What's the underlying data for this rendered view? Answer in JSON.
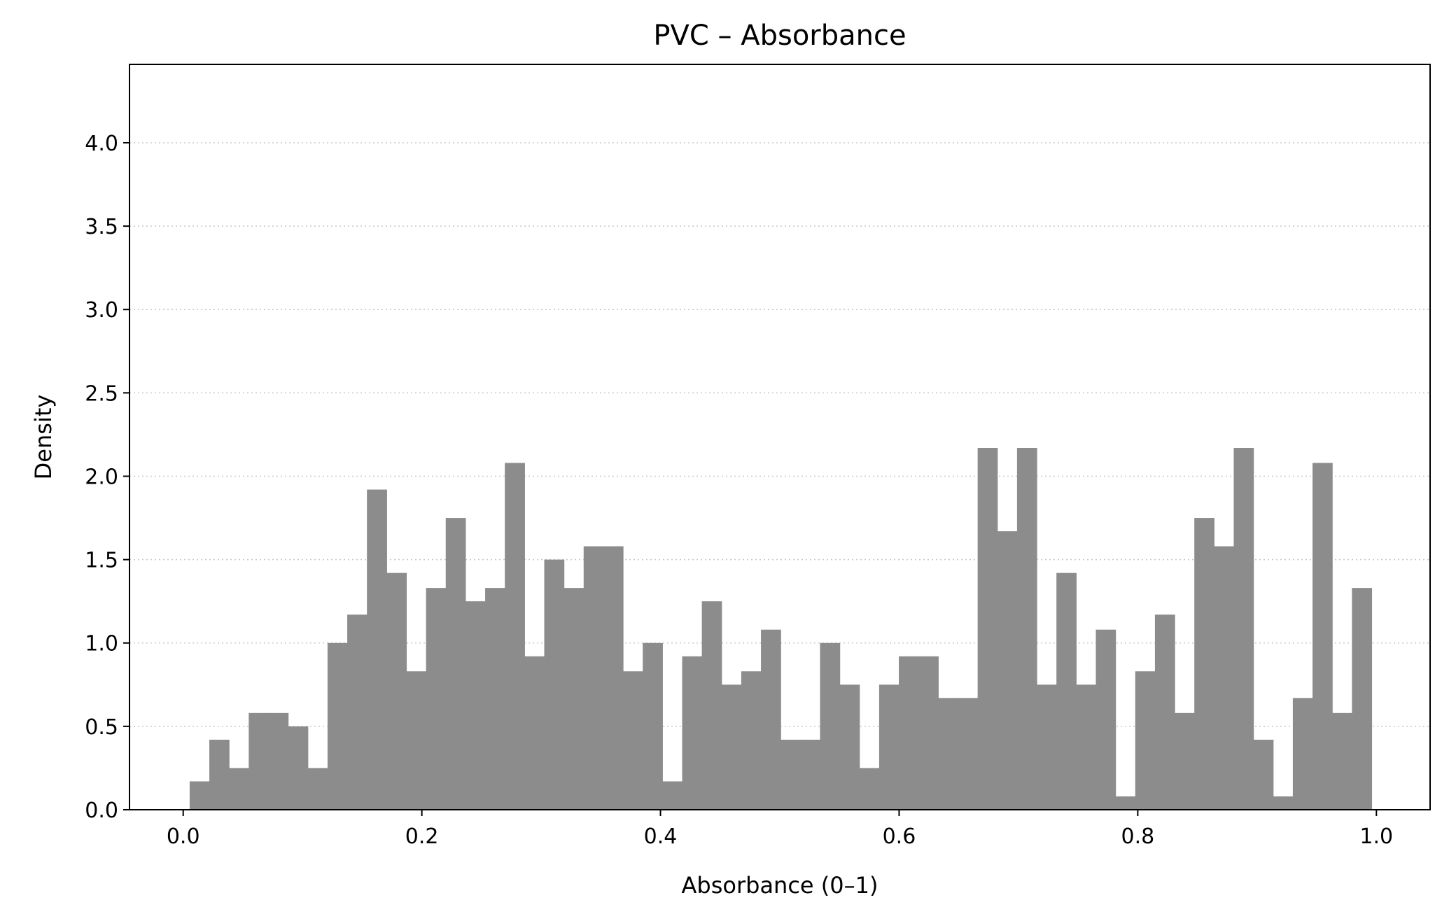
{
  "chart_data": {
    "type": "bar",
    "title": "PVC – Absorbance",
    "xlabel": "Absorbance (0–1)",
    "ylabel": "Density",
    "xlim": [
      -0.045,
      1.045
    ],
    "ylim": [
      0,
      4.47
    ],
    "xticks": [
      "0.0",
      "0.2",
      "0.4",
      "0.6",
      "0.8",
      "1.0"
    ],
    "xtick_values": [
      0,
      0.2,
      0.4,
      0.6,
      0.8,
      1.0
    ],
    "yticks": [
      "0.0",
      "0.5",
      "1.0",
      "1.5",
      "2.0",
      "2.5",
      "3.0",
      "3.5",
      "4.0"
    ],
    "ytick_values": [
      0,
      0.5,
      1.0,
      1.5,
      2.0,
      2.5,
      3.0,
      3.5,
      4.0
    ],
    "grid": "horizontal, dotted",
    "bar_color": "#8c8c8c",
    "bins": {
      "start": 0.0054,
      "width": 0.01651,
      "values": [
        0.17,
        0.42,
        0.25,
        0.58,
        0.58,
        0.5,
        0.25,
        1.0,
        1.17,
        1.92,
        1.42,
        0.83,
        1.33,
        1.75,
        1.25,
        1.33,
        2.08,
        0.92,
        1.5,
        1.33,
        1.58,
        1.58,
        0.83,
        1.0,
        0.17,
        0.92,
        1.25,
        0.75,
        0.83,
        1.08,
        0.42,
        0.42,
        1.0,
        0.75,
        0.25,
        0.75,
        0.92,
        0.92,
        0.67,
        0.67,
        2.17,
        1.67,
        2.17,
        0.75,
        1.42,
        0.75,
        1.08,
        0.08,
        0.83,
        1.17,
        0.58,
        1.75,
        1.58,
        2.17,
        0.42,
        0.08,
        0.67,
        2.08,
        0.58,
        1.33
      ]
    }
  }
}
